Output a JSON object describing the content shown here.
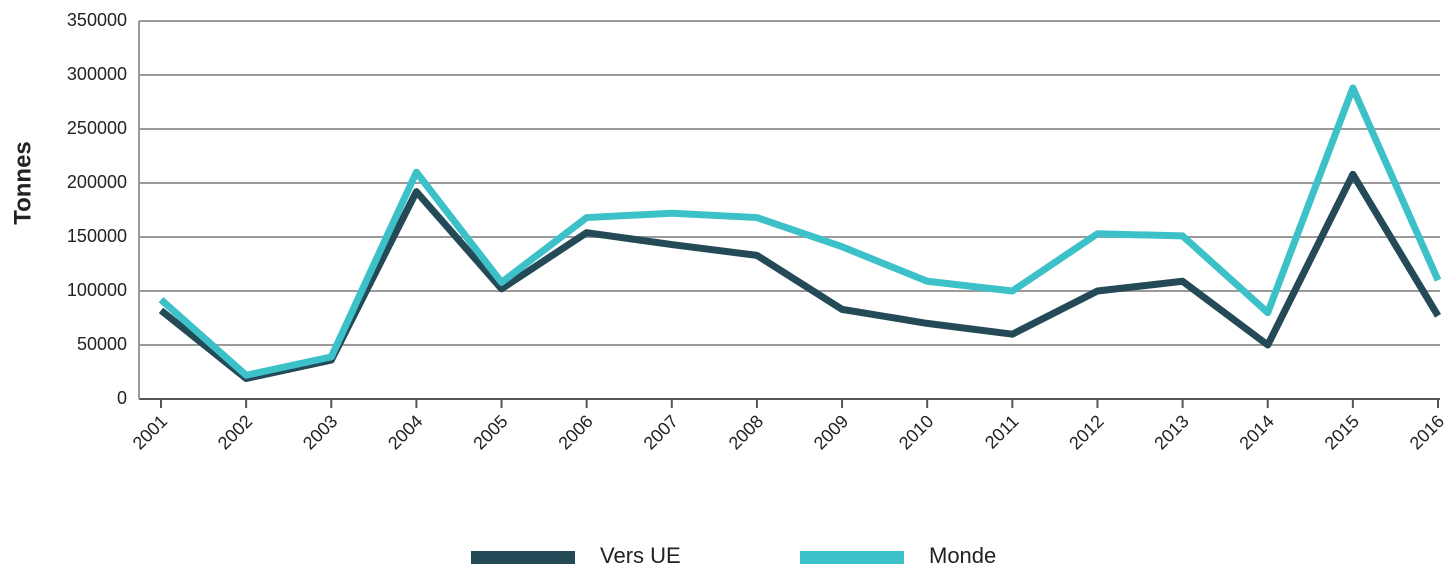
{
  "chart_data": {
    "type": "line",
    "y_label": "Tonnes",
    "categories": [
      "2001",
      "2002",
      "2003",
      "2004",
      "2005",
      "2006",
      "2007",
      "2008",
      "2009",
      "2010",
      "2011",
      "2012",
      "2013",
      "2014",
      "2015",
      "2016"
    ],
    "series": [
      {
        "name": "Vers UE",
        "color": "#234a56",
        "values": [
          82000,
          19000,
          36000,
          192000,
          102000,
          154000,
          143000,
          133000,
          83000,
          70000,
          60000,
          100000,
          109000,
          50000,
          208000,
          77000
        ]
      },
      {
        "name": "Monde",
        "color": "#3dc1c9",
        "values": [
          92000,
          22000,
          39000,
          210000,
          108000,
          168000,
          172000,
          168000,
          141000,
          109000,
          100000,
          153000,
          151000,
          80000,
          288000,
          110000
        ]
      }
    ],
    "ylim": [
      0,
      350000
    ],
    "yticks": [
      0,
      50000,
      100000,
      150000,
      200000,
      250000,
      300000,
      350000
    ],
    "grid": true,
    "legend": "bottom"
  }
}
